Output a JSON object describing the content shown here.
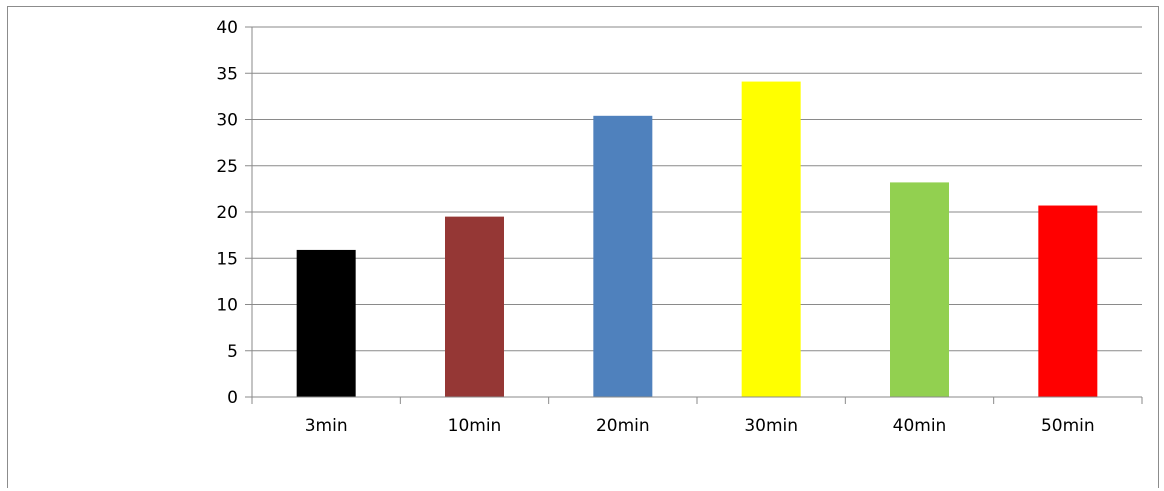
{
  "chart_data": {
    "type": "bar",
    "title": "",
    "xlabel": "",
    "ylabel": "",
    "categories": [
      "3min",
      "10min",
      "20min",
      "30min",
      "40min",
      "50min"
    ],
    "values": [
      15.9,
      19.5,
      30.4,
      34.1,
      23.2,
      20.7
    ],
    "colors": [
      "#000000",
      "#953735",
      "#4f81bd",
      "#ffff00",
      "#92d050",
      "#ff0000"
    ],
    "ylim": [
      0,
      40
    ],
    "yticks": [
      "0",
      "5",
      "10",
      "15",
      "20",
      "25",
      "30",
      "35",
      "40"
    ],
    "grid": true,
    "legend": "none"
  }
}
